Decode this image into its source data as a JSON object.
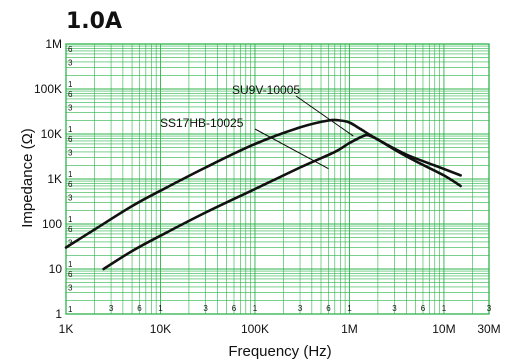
{
  "chart_data": {
    "type": "line",
    "title": "1.0A",
    "xlabel": "Frequency (Hz)",
    "ylabel": "Impedance (Ω)",
    "x_scale": "log",
    "y_scale": "log",
    "xlim": [
      1000,
      30000000
    ],
    "ylim": [
      1,
      1000000
    ],
    "grid": true,
    "x_ticks": [
      {
        "value": 1000,
        "label": "1K"
      },
      {
        "value": 10000,
        "label": "10K"
      },
      {
        "value": 100000,
        "label": "100K"
      },
      {
        "value": 1000000,
        "label": "1M"
      },
      {
        "value": 10000000,
        "label": "10M"
      },
      {
        "value": 30000000,
        "label": "30M"
      }
    ],
    "y_ticks": [
      {
        "value": 1,
        "label": "1"
      },
      {
        "value": 10,
        "label": "10"
      },
      {
        "value": 100,
        "label": "100"
      },
      {
        "value": 1000,
        "label": "1K"
      },
      {
        "value": 10000,
        "label": "10K"
      },
      {
        "value": 100000,
        "label": "100K"
      },
      {
        "value": 1000000,
        "label": "1M"
      }
    ],
    "x_minor_labels": [
      {
        "value": 3000,
        "label": "3"
      },
      {
        "value": 6000,
        "label": "6"
      },
      {
        "value": 10000,
        "label": "1"
      },
      {
        "value": 30000,
        "label": "3"
      },
      {
        "value": 60000,
        "label": "6"
      },
      {
        "value": 100000,
        "label": "1"
      },
      {
        "value": 300000,
        "label": "3"
      },
      {
        "value": 600000,
        "label": "6"
      },
      {
        "value": 1000000,
        "label": "1"
      },
      {
        "value": 3000000,
        "label": "3"
      },
      {
        "value": 6000000,
        "label": "6"
      },
      {
        "value": 10000000,
        "label": "1"
      },
      {
        "value": 30000000,
        "label": "3"
      }
    ],
    "y_minor_labels": [
      {
        "value": 1,
        "label": "1"
      },
      {
        "value": 3,
        "label": "3"
      },
      {
        "value": 6,
        "label": "6"
      },
      {
        "value": 10,
        "label": "1"
      },
      {
        "value": 30,
        "label": "3"
      },
      {
        "value": 60,
        "label": "6"
      },
      {
        "value": 100,
        "label": "1"
      },
      {
        "value": 300,
        "label": "3"
      },
      {
        "value": 600,
        "label": "6"
      },
      {
        "value": 1000,
        "label": "1"
      },
      {
        "value": 3000,
        "label": "3"
      },
      {
        "value": 6000,
        "label": "6"
      },
      {
        "value": 10000,
        "label": "1"
      },
      {
        "value": 30000,
        "label": "3"
      },
      {
        "value": 60000,
        "label": "6"
      },
      {
        "value": 100000,
        "label": "1"
      },
      {
        "value": 300000,
        "label": "3"
      },
      {
        "value": 600000,
        "label": "6"
      }
    ],
    "series": [
      {
        "name": "SU9V-10005",
        "x": [
          1000,
          2000,
          5000,
          10000,
          30000,
          100000,
          300000,
          600000,
          800000,
          1000000,
          1300000,
          2000000,
          4000000,
          8000000,
          15000000
        ],
        "y": [
          30,
          75,
          250,
          550,
          1800,
          6000,
          14000,
          20000,
          20000,
          18000,
          13000,
          7500,
          3500,
          2000,
          1200
        ]
      },
      {
        "name": "SS17HB-10025",
        "x": [
          2500,
          5000,
          10000,
          30000,
          100000,
          300000,
          700000,
          1000000,
          1400000,
          1600000,
          2000000,
          3000000,
          5000000,
          10000000,
          15000000
        ],
        "y": [
          10,
          25,
          55,
          180,
          600,
          1800,
          4000,
          6300,
          9000,
          9300,
          7500,
          4500,
          2500,
          1200,
          700
        ]
      }
    ],
    "colors": {
      "grid": "#2db34a",
      "frame": "#2db34a",
      "curve": "#111111",
      "text": "#111111"
    }
  }
}
